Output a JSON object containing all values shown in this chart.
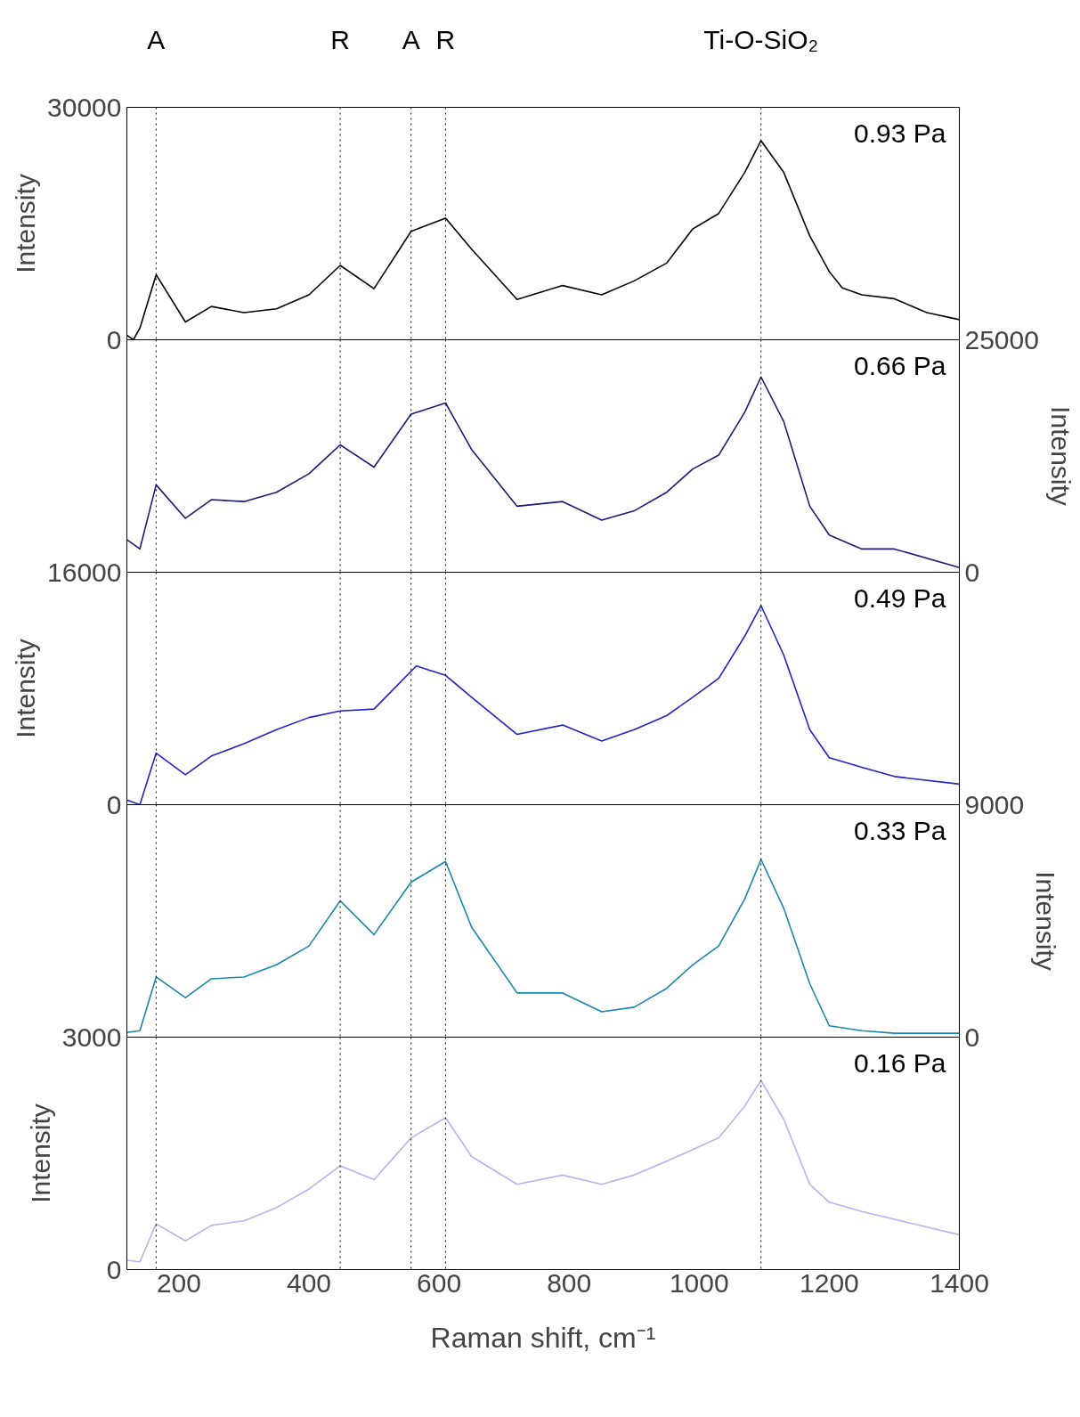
{
  "chart_data": [
    {
      "type": "line",
      "xlim": [
        120,
        1400
      ],
      "ylim": [
        0,
        30000
      ],
      "yticks": [
        0,
        30000
      ],
      "ylabel": "Intensity",
      "tick_labels": "y",
      "grid": false,
      "annotations": [
        "0.93 Pa"
      ],
      "ref_lines": [
        {
          "axis": "x",
          "value": 165,
          "label": "A",
          "line_style": "dotted"
        },
        {
          "axis": "x",
          "value": 448,
          "label": "R",
          "line_style": "dotted"
        },
        {
          "axis": "x",
          "value": 557,
          "label": "A",
          "line_style": "dotted"
        },
        {
          "axis": "x",
          "value": 610,
          "label": "R",
          "line_style": "dotted"
        },
        {
          "axis": "x",
          "value": 1095,
          "label": "Ti-O-SiO₂",
          "line_style": "dotted"
        }
      ],
      "series": [
        {
          "color": "#000000",
          "x": [
            120,
            130,
            140,
            165,
            210,
            250,
            300,
            350,
            400,
            448,
            500,
            557,
            610,
            650,
            720,
            790,
            850,
            900,
            950,
            990,
            1030,
            1070,
            1095,
            1130,
            1170,
            1200,
            1220,
            1250,
            1300,
            1350,
            1400
          ],
          "values": [
            600,
            0,
            1500,
            8400,
            2300,
            4300,
            3500,
            4000,
            5800,
            9600,
            6600,
            14000,
            15700,
            11700,
            5200,
            7000,
            5800,
            7600,
            9900,
            14300,
            16300,
            21600,
            25700,
            21600,
            13400,
            8800,
            6700,
            5800,
            5300,
            3500,
            2600
          ]
        }
      ]
    },
    {
      "type": "line",
      "xlim": [
        120,
        1400
      ],
      "y2lim": [
        0,
        25000
      ],
      "y2ticks": [
        0,
        25000
      ],
      "y2label": "Intensity",
      "tick_labels": "y2",
      "grid": false,
      "annotations": [
        "0.66 Pa"
      ],
      "ref_lines": [
        {
          "axis": "x",
          "value": 165,
          "line_style": "dotted"
        },
        {
          "axis": "x",
          "value": 448,
          "line_style": "dotted"
        },
        {
          "axis": "x",
          "value": 557,
          "line_style": "dotted"
        },
        {
          "axis": "x",
          "value": 610,
          "line_style": "dotted"
        },
        {
          "axis": "x",
          "value": 1095,
          "line_style": "dotted"
        }
      ],
      "series": [
        {
          "color": "#1a1a7a",
          "axis": "y2",
          "x": [
            120,
            140,
            165,
            210,
            250,
            300,
            350,
            400,
            448,
            500,
            557,
            610,
            650,
            720,
            790,
            850,
            900,
            950,
            990,
            1030,
            1070,
            1095,
            1130,
            1170,
            1200,
            1250,
            1300,
            1400
          ],
          "values": [
            3500,
            2500,
            9400,
            5800,
            7800,
            7600,
            8600,
            10600,
            13700,
            11300,
            17000,
            18200,
            13200,
            7100,
            7600,
            5600,
            6600,
            8600,
            11100,
            12600,
            17200,
            21000,
            16200,
            7100,
            4000,
            2500,
            2500,
            500
          ]
        }
      ]
    },
    {
      "type": "line",
      "xlim": [
        120,
        1400
      ],
      "ylim": [
        0,
        16000
      ],
      "yticks": [
        0,
        16000
      ],
      "ylabel": "Intensity",
      "tick_labels": "y",
      "grid": false,
      "annotations": [
        "0.49 Pa"
      ],
      "ref_lines": [
        {
          "axis": "x",
          "value": 165,
          "line_style": "dotted"
        },
        {
          "axis": "x",
          "value": 448,
          "line_style": "dotted"
        },
        {
          "axis": "x",
          "value": 557,
          "line_style": "dotted"
        },
        {
          "axis": "x",
          "value": 610,
          "line_style": "dotted"
        },
        {
          "axis": "x",
          "value": 1095,
          "line_style": "dotted"
        }
      ],
      "series": [
        {
          "color": "#2222c8",
          "x": [
            120,
            140,
            165,
            210,
            250,
            300,
            350,
            400,
            448,
            500,
            565,
            610,
            650,
            720,
            790,
            850,
            900,
            950,
            990,
            1030,
            1070,
            1095,
            1130,
            1170,
            1200,
            1250,
            1300,
            1400
          ],
          "values": [
            320,
            0,
            3550,
            2060,
            3350,
            4200,
            5160,
            6000,
            6450,
            6580,
            9550,
            8900,
            7400,
            4840,
            5480,
            4390,
            5160,
            6130,
            7400,
            8700,
            11600,
            13700,
            10300,
            5160,
            3230,
            2580,
            1940,
            1420
          ]
        }
      ]
    },
    {
      "type": "line",
      "xlim": [
        120,
        1400
      ],
      "y2lim": [
        0,
        9000
      ],
      "y2ticks": [
        0,
        9000
      ],
      "y2label": "Intensity",
      "tick_labels": "y2",
      "grid": false,
      "annotations": [
        "0.33 Pa"
      ],
      "ref_lines": [
        {
          "axis": "x",
          "value": 165,
          "line_style": "dotted"
        },
        {
          "axis": "x",
          "value": 448,
          "line_style": "dotted"
        },
        {
          "axis": "x",
          "value": 557,
          "line_style": "dotted"
        },
        {
          "axis": "x",
          "value": 610,
          "line_style": "dotted"
        },
        {
          "axis": "x",
          "value": 1095,
          "line_style": "dotted"
        }
      ],
      "series": [
        {
          "color": "#1a86b0",
          "axis": "y2",
          "x": [
            120,
            140,
            165,
            210,
            250,
            300,
            350,
            400,
            448,
            500,
            557,
            610,
            650,
            720,
            790,
            850,
            900,
            950,
            990,
            1030,
            1070,
            1095,
            1130,
            1170,
            1200,
            1250,
            1300,
            1400
          ],
          "values": [
            180,
            250,
            2330,
            1530,
            2260,
            2330,
            2800,
            3530,
            5280,
            3970,
            6000,
            6800,
            4260,
            1710,
            1710,
            980,
            1160,
            1890,
            2800,
            3530,
            5350,
            6880,
            4990,
            2070,
            440,
            250,
            150,
            150
          ]
        }
      ]
    },
    {
      "type": "line",
      "xlim": [
        120,
        1400
      ],
      "xticks": [
        200,
        400,
        600,
        800,
        1000,
        1200,
        1400
      ],
      "xlabel": "Raman shift, cm⁻¹",
      "ylim": [
        0,
        3000
      ],
      "yticks": [
        0,
        3000
      ],
      "ylabel": "Intensity",
      "grid": false,
      "annotations": [
        "0.16 Pa"
      ],
      "ref_lines": [
        {
          "axis": "x",
          "value": 165,
          "line_style": "dotted"
        },
        {
          "axis": "x",
          "value": 448,
          "line_style": "dotted"
        },
        {
          "axis": "x",
          "value": 557,
          "line_style": "dotted"
        },
        {
          "axis": "x",
          "value": 610,
          "line_style": "dotted"
        },
        {
          "axis": "x",
          "value": 1095,
          "line_style": "dotted"
        }
      ],
      "series": [
        {
          "color": "#b4b4f0",
          "x": [
            120,
            140,
            165,
            210,
            250,
            300,
            350,
            400,
            448,
            500,
            557,
            610,
            650,
            720,
            790,
            850,
            900,
            950,
            990,
            1030,
            1070,
            1095,
            1130,
            1170,
            1200,
            1250,
            1300,
            1400
          ],
          "values": [
            120,
            100,
            590,
            370,
            570,
            630,
            800,
            1040,
            1340,
            1160,
            1700,
            1960,
            1460,
            1100,
            1220,
            1100,
            1220,
            1400,
            1550,
            1700,
            2110,
            2440,
            1940,
            1100,
            870,
            750,
            650,
            450
          ]
        }
      ]
    }
  ]
}
